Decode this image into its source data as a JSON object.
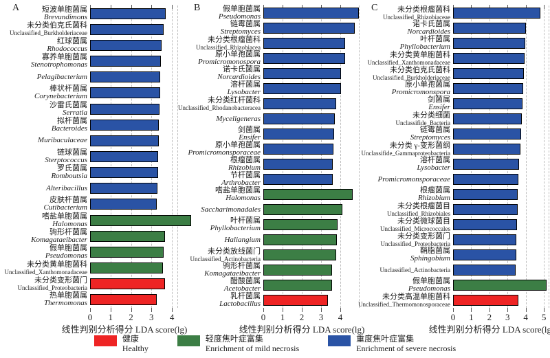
{
  "figure": {
    "panel_letters": [
      "A",
      "B",
      "C"
    ]
  },
  "chart_data": {
    "type": "bar",
    "orientation": "horizontal",
    "xlabel": "线性判别分析得分 LDA score(lg)",
    "grid": "dashed-vertical",
    "colors": {
      "healthy": "#ee2424",
      "mild": "#3c7e45",
      "severe": "#2a53a5"
    },
    "panels": [
      {
        "label": "A",
        "axis_ticks": [
          0,
          1,
          2,
          3,
          4
        ],
        "axis_max": 4.3,
        "items": [
          {
            "zh": "短波单胞菌属",
            "la": "Brevundimons",
            "italic": true,
            "group": "severe",
            "value": 3.7
          },
          {
            "zh": "未分类伯克氏菌科",
            "la": "Unclassified_Burkholderiaceae",
            "italic": false,
            "group": "severe",
            "value": 3.6
          },
          {
            "zh": "红球菌属",
            "la": "Rhodococcus",
            "italic": true,
            "group": "severe",
            "value": 3.51
          },
          {
            "zh": "寡养单胞菌属",
            "la": "Stenotrophomonas",
            "italic": true,
            "group": "severe",
            "value": 3.46
          },
          {
            "zh": "",
            "la": "Pelagibacterium",
            "italic": true,
            "group": "severe",
            "value": 3.43
          },
          {
            "zh": "棒状杆菌属",
            "la": "Corynebacterium",
            "italic": true,
            "group": "severe",
            "value": 3.41
          },
          {
            "zh": "沙雷氏菌属",
            "la": "Serratia",
            "italic": true,
            "group": "severe",
            "value": 3.39
          },
          {
            "zh": "拟杆菌属",
            "la": "Bacteroides",
            "italic": true,
            "group": "severe",
            "value": 3.37
          },
          {
            "zh": "",
            "la": "Muribaculaceae",
            "italic": true,
            "group": "severe",
            "value": 3.35
          },
          {
            "zh": "链球菌属",
            "la": "Sterptococcus",
            "italic": true,
            "group": "severe",
            "value": 3.33
          },
          {
            "zh": "罗氏菌属",
            "la": "Romboutsia",
            "italic": true,
            "group": "severe",
            "value": 3.31
          },
          {
            "zh": "",
            "la": "Alteribacillus",
            "italic": true,
            "group": "severe",
            "value": 3.29
          },
          {
            "zh": "皮肤杆菌属",
            "la": "Cutibacterium",
            "italic": true,
            "group": "severe",
            "value": 3.26
          },
          {
            "zh": "嗜盐单胞菌属",
            "la": "Halomonas",
            "italic": true,
            "group": "mild",
            "value": 4.95
          },
          {
            "zh": "驹形杆菌属",
            "la": "Komagataeibacter",
            "italic": true,
            "group": "mild",
            "value": 3.65
          },
          {
            "zh": "假单胞菌属",
            "la": "Pseudomonas",
            "italic": true,
            "group": "mild",
            "value": 3.58
          },
          {
            "zh": "未分类黄单胞菌科",
            "la": "Unclassified_Xanthomonadaceae",
            "italic": false,
            "group": "mild",
            "value": 3.55
          },
          {
            "zh": "未分类变形菌门",
            "la": "Unclassified_Proteobacteria",
            "italic": false,
            "group": "healthy",
            "value": 3.65
          },
          {
            "zh": "热单胞菌属",
            "la": "Thermomonas",
            "italic": true,
            "group": "healthy",
            "value": 3.25
          }
        ]
      },
      {
        "label": "B",
        "axis_ticks": [
          0,
          1,
          2,
          3,
          4
        ],
        "axis_max": 5.0,
        "items": [
          {
            "zh": "假单胞菌属",
            "la": "Pseudomonas",
            "italic": true,
            "group": "severe",
            "value": 4.95
          },
          {
            "zh": "链霉菌属",
            "la": "Streptomyces",
            "italic": true,
            "group": "severe",
            "value": 4.75
          },
          {
            "zh": "未分类根瘤菌科",
            "la": "Unclassified_Rhizobiacea",
            "italic": false,
            "group": "severe",
            "value": 4.25
          },
          {
            "zh": "原小单孢菌属",
            "la": "Promicromonospora",
            "italic": true,
            "group": "severe",
            "value": 4.24
          },
          {
            "zh": "诺卡氏菌属",
            "la": "Norcardioides",
            "italic": true,
            "group": "severe",
            "value": 4.05
          },
          {
            "zh": "溶杆菌属",
            "la": "Lysobacter",
            "italic": true,
            "group": "severe",
            "value": 4.04
          },
          {
            "zh": "未分类红杆菌科",
            "la": "Unclassified_Rhodanobacteracea",
            "italic": false,
            "group": "severe",
            "value": 3.8
          },
          {
            "zh": "",
            "la": "Myceligeneras",
            "italic": true,
            "group": "severe",
            "value": 3.72
          },
          {
            "zh": "剑菌属",
            "la": "Ensifer",
            "italic": true,
            "group": "severe",
            "value": 3.68
          },
          {
            "zh": "原小单孢菌属",
            "la": "Promicromonsporaceae",
            "italic": true,
            "group": "severe",
            "value": 3.65
          },
          {
            "zh": "根瘤菌属",
            "la": "Rhizobium",
            "italic": true,
            "group": "severe",
            "value": 3.62
          },
          {
            "zh": "节杆菌属",
            "la": "Arthrobacter",
            "italic": true,
            "group": "severe",
            "value": 3.6
          },
          {
            "zh": "嗜盐单胞菌属",
            "la": "Halomonas",
            "italic": true,
            "group": "mild",
            "value": 4.65
          },
          {
            "zh": "",
            "la": "Saccharimonadales",
            "italic": true,
            "group": "mild",
            "value": 4.1
          },
          {
            "zh": "叶杆菌属",
            "la": "Phyllobacterium",
            "italic": true,
            "group": "mild",
            "value": 3.87
          },
          {
            "zh": "",
            "la": "Haliangium",
            "italic": true,
            "group": "mild",
            "value": 3.83
          },
          {
            "zh": "未分类放线菌门",
            "la": "Unclassified_Actinobacteria",
            "italic": false,
            "group": "mild",
            "value": 3.79
          },
          {
            "zh": "驹形杆菌属",
            "la": "Komagataeibacter",
            "italic": true,
            "group": "mild",
            "value": 3.58
          },
          {
            "zh": "醋酸菌属",
            "la": "Acetobacter",
            "italic": true,
            "group": "mild",
            "value": 3.56
          },
          {
            "zh": "乳杆菌属",
            "la": "Lactobacillus",
            "italic": true,
            "group": "healthy",
            "value": 3.36
          }
        ]
      },
      {
        "label": "C",
        "axis_ticks": [
          0,
          1,
          2,
          3,
          4,
          5
        ],
        "axis_max": 5.3,
        "items": [
          {
            "zh": "未分类根瘤菌科",
            "la": "Unclassified_Rhizobiaceae",
            "italic": false,
            "group": "severe",
            "value": 4.8
          },
          {
            "zh": "诺卡氏菌属",
            "la": "Norcardioides",
            "italic": true,
            "group": "severe",
            "value": 4.0
          },
          {
            "zh": "叶杆菌属",
            "la": "Phyllobacterium",
            "italic": true,
            "group": "severe",
            "value": 3.96
          },
          {
            "zh": "未分类黄单胞菌科",
            "la": "Unclassified_Xanthomonadaceae",
            "italic": false,
            "group": "severe",
            "value": 3.93
          },
          {
            "zh": "未分类伯克氏菌科",
            "la": "Unclassified_Burkholderiaceae",
            "italic": false,
            "group": "severe",
            "value": 3.89
          },
          {
            "zh": "原小单孢菌属",
            "la": "Promicromonspora",
            "italic": true,
            "group": "severe",
            "value": 3.85
          },
          {
            "zh": "剑菌属",
            "la": "Ensifer",
            "italic": true,
            "group": "severe",
            "value": 3.81
          },
          {
            "zh": "未分类细菌",
            "la": "Unclassifide_Bacteria",
            "italic": false,
            "group": "severe",
            "value": 3.77
          },
          {
            "zh": "链霉菌属",
            "la": "Streptomyces",
            "italic": true,
            "group": "severe",
            "value": 3.73
          },
          {
            "zh": "未分类 γ-变形菌纲",
            "la": "Unclassifide_Gammaproteobacteria",
            "italic": false,
            "group": "severe",
            "value": 3.7
          },
          {
            "zh": "溶杆菌属",
            "la": "Lysobacter",
            "italic": true,
            "group": "severe",
            "value": 3.62
          },
          {
            "zh": "",
            "la": "Promicromonsporaceae",
            "italic": true,
            "group": "severe",
            "value": 3.59
          },
          {
            "zh": "根瘤菌属",
            "la": "Rhizobium",
            "italic": true,
            "group": "severe",
            "value": 3.57
          },
          {
            "zh": "未分类根瘤菌目",
            "la": "Unclassified_Rhizobiales",
            "italic": false,
            "group": "severe",
            "value": 3.55
          },
          {
            "zh": "未分类微球菌目",
            "la": "Unclassified_Micrococcales",
            "italic": false,
            "group": "severe",
            "value": 3.52
          },
          {
            "zh": "未分类变形菌门",
            "la": "Unclassified_Proteobacteria",
            "italic": false,
            "group": "severe",
            "value": 3.5
          },
          {
            "zh": "鞘脂菌属",
            "la": "Sphingobium",
            "italic": true,
            "group": "severe",
            "value": 3.48
          },
          {
            "zh": "",
            "la": "Unclassified_Actinobacteria",
            "italic": false,
            "group": "severe",
            "value": 3.46
          },
          {
            "zh": "假单胞菌属",
            "la": "Pseudomonas",
            "italic": true,
            "group": "mild",
            "value": 5.15
          },
          {
            "zh": "未分类高温单胞菌科",
            "la": "Unclassified_Thermomonosporaceae",
            "italic": false,
            "group": "healthy",
            "value": 3.6
          }
        ]
      }
    ]
  },
  "legend": {
    "items": [
      {
        "group": "healthy",
        "zh": "健康",
        "en": "Healthy"
      },
      {
        "group": "mild",
        "zh": "轻度焦叶症富集",
        "en": "Enrichment of mild necrosis"
      },
      {
        "group": "severe",
        "zh": "重度焦叶症富集",
        "en": "Enrichment of severe necrosis"
      }
    ]
  }
}
